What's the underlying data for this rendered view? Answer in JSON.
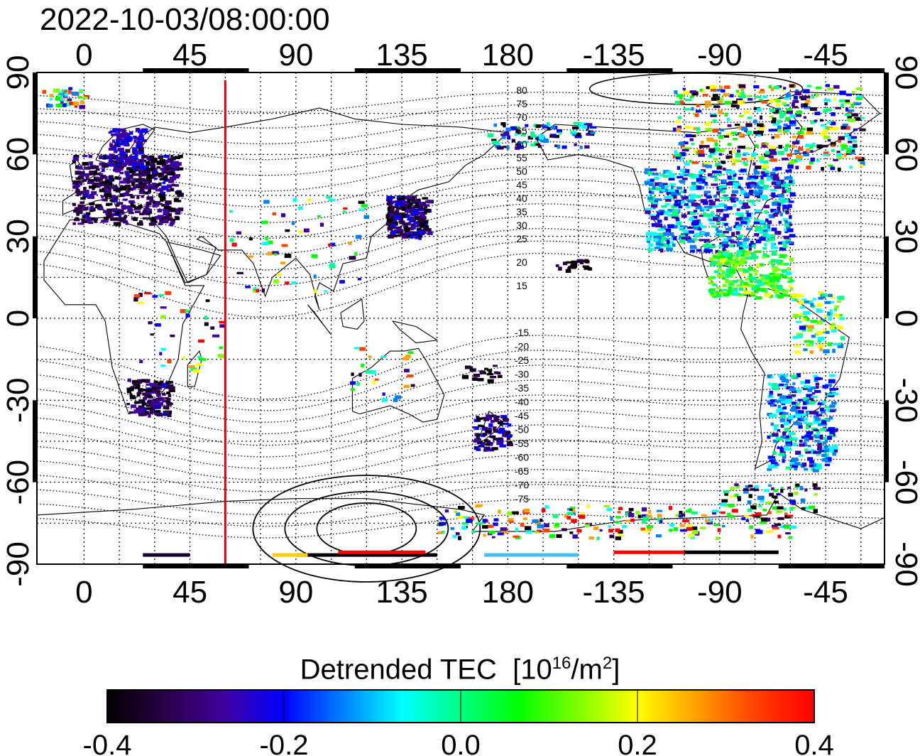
{
  "title": "2022-10-03/08:00:00",
  "colorbar": {
    "label_main": "Detrended TEC",
    "unit_open": "[10",
    "unit_exp": "16",
    "unit_mid": "/m",
    "unit_exp2": "2",
    "unit_close": "]",
    "ticks": [
      "-0.4",
      "-0.2",
      "0.0",
      "0.2",
      "0.4"
    ],
    "colors": [
      "#000000",
      "#2a0045",
      "#4000a0",
      "#0000ff",
      "#0080ff",
      "#00ffff",
      "#00ff80",
      "#00ff00",
      "#80ff00",
      "#ffff00",
      "#ffa000",
      "#ff4000",
      "#ff0000"
    ]
  },
  "map": {
    "top_ticks": [
      "0",
      "45",
      "90",
      "135",
      "180",
      "-135",
      "-90",
      "-45"
    ],
    "bottom_ticks": [
      "0",
      "45",
      "90",
      "135",
      "180",
      "-135",
      "-90",
      "-45"
    ],
    "left_ticks": [
      "90",
      "60",
      "30",
      "0",
      "-30",
      "-60",
      "-90"
    ],
    "right_ticks": [
      "90",
      "60",
      "30",
      "0",
      "-30",
      "-60",
      "-90"
    ],
    "north_contour_labels": [
      "80",
      "75",
      "70",
      "65",
      "60",
      "55",
      "50",
      "45",
      "40",
      "35",
      "30",
      "25",
      "20",
      "15"
    ],
    "south_contour_labels": [
      "-15",
      "-20",
      "-25",
      "-30",
      "-35",
      "-40",
      "-45",
      "-50",
      "-55",
      "-60",
      "-65",
      "-70",
      "-75"
    ],
    "meridian_color": "#e00000",
    "meridian_lon": 60
  }
}
